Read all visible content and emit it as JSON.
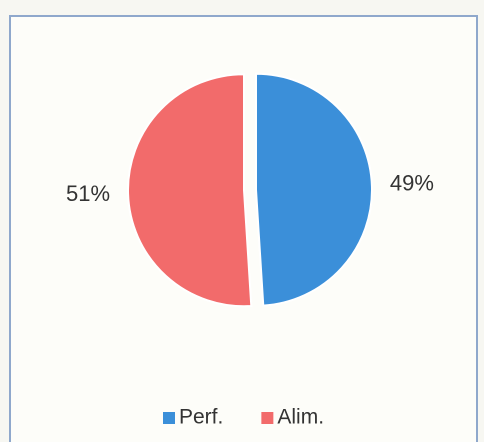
{
  "chart_data": {
    "type": "pie",
    "categories": [
      "Perf.",
      "Alim."
    ],
    "values": [
      49,
      51
    ],
    "value_labels": [
      "49%",
      "51%"
    ],
    "colors": [
      "#3b8fd9",
      "#f26b6b"
    ],
    "legend": "bottom"
  }
}
